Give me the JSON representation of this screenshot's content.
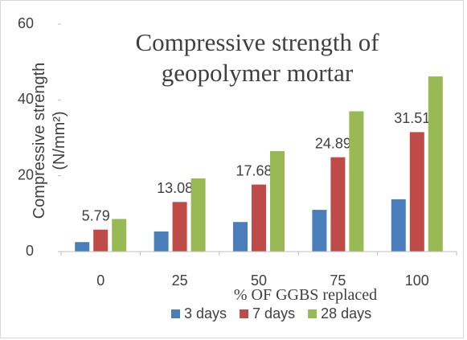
{
  "chart_data": {
    "type": "bar",
    "title": "Compressive strength of geopolymer mortar",
    "xlabel": "% OF GGBS replaced",
    "ylabel": "Compressive strength (N/mm²)",
    "categories": [
      "0",
      "25",
      "50",
      "75",
      "100"
    ],
    "series": [
      {
        "name": "3 days",
        "color": "#4a7ebb",
        "values": [
          2.5,
          5.3,
          7.8,
          11,
          13.8
        ]
      },
      {
        "name": "7 days",
        "color": "#be4b48",
        "values": [
          5.79,
          13.08,
          17.68,
          24.89,
          31.51
        ],
        "data_labels": true
      },
      {
        "name": "28 days",
        "color": "#98b954",
        "values": [
          8.6,
          19.3,
          26.5,
          37,
          46.2
        ]
      }
    ],
    "ylim": [
      0,
      60
    ],
    "yticks": [
      0,
      20,
      40,
      60
    ],
    "grid": false,
    "legend": "bottom"
  }
}
